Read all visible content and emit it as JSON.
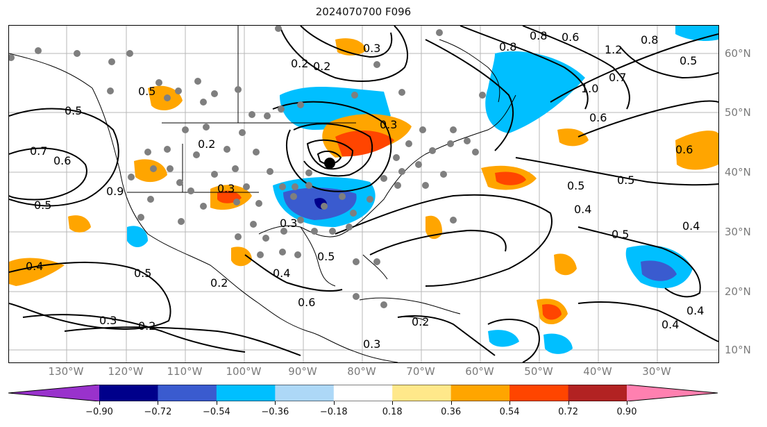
{
  "title": "2024070700 F096",
  "lat_labels": [
    "60°N",
    "50°N",
    "40°N",
    "30°N",
    "20°N",
    "10°N"
  ],
  "lon_labels": [
    "130°W",
    "120°W",
    "110°W",
    "100°W",
    "90°W",
    "80°W",
    "70°W",
    "60°W",
    "50°W",
    "40°W",
    "30°W"
  ],
  "colorbar": {
    "ticks": [
      "−0.90",
      "−0.72",
      "−0.54",
      "−0.36",
      "−0.18",
      "0.18",
      "0.36",
      "0.54",
      "0.72",
      "0.90"
    ],
    "colors": [
      "#9932cc",
      "#00008b",
      "#3a5bcf",
      "#00bfff",
      "#add8f7",
      "#ffffff",
      "#ffe88a",
      "#ffa500",
      "#ff4500",
      "#b22222",
      "#ff80b0"
    ]
  },
  "contour_labels": [
    "0.5",
    "0.7",
    "0.6",
    "0.5",
    "0.4",
    "0.5",
    "0.3",
    "0.2",
    "0.3",
    "0.4",
    "0.5",
    "0.6",
    "0.2",
    "0.3",
    "0.3",
    "0.2",
    "0.3",
    "0.2",
    "0.2",
    "0.3",
    "0.8",
    "0.8",
    "0.6",
    "1.0",
    "0.7",
    "1.2",
    "0.8",
    "0.5",
    "0.6",
    "0.6",
    "0.5",
    "0.5",
    "0.4",
    "0.4",
    "0.5",
    "0.4",
    "0.4",
    "0.5",
    "0.9",
    "0.2"
  ]
}
